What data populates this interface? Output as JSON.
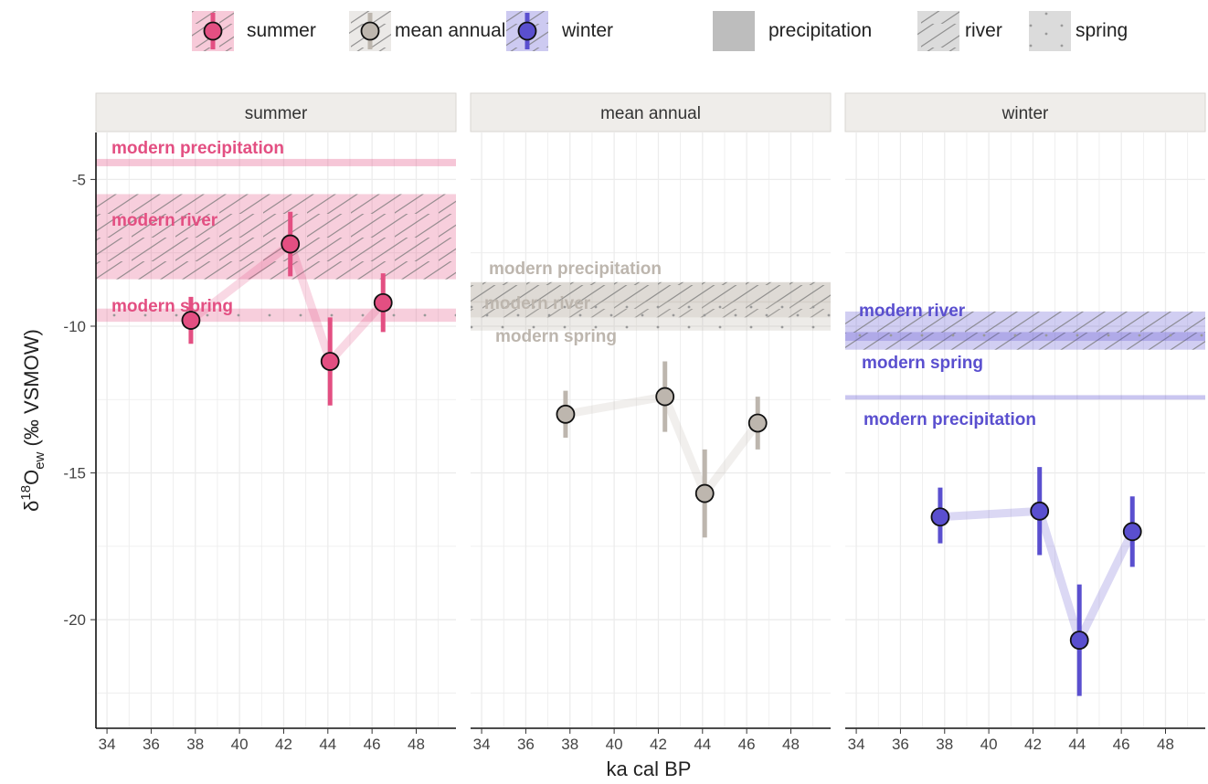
{
  "legend": {
    "season_items": [
      {
        "key": "summer",
        "label": "summer",
        "color": "#e34f82"
      },
      {
        "key": "annual",
        "label": "mean annual",
        "color": "#bdb6ae"
      },
      {
        "key": "winter",
        "label": "winter",
        "color": "#5a4fcf"
      }
    ],
    "source_items": [
      {
        "key": "precipitation",
        "label": "precipitation",
        "fill": "solid"
      },
      {
        "key": "river",
        "label": "river",
        "fill": "hatch"
      },
      {
        "key": "spring",
        "label": "spring",
        "fill": "dots"
      }
    ]
  },
  "chart_data": {
    "type": "scatter",
    "xlabel": "ka cal BP",
    "ylabel": "δ18Oew (‰ VSMOW)",
    "xlim": [
      33.5,
      49.8
    ],
    "ylim": [
      -23.7,
      -3.4
    ],
    "x_ticks": [
      "34",
      "36",
      "38",
      "40",
      "42",
      "44",
      "46",
      "48"
    ],
    "y_ticks": [
      "-5",
      "-10",
      "-15",
      "-20"
    ],
    "panels": [
      {
        "strip": "summer",
        "color": "#e34f82",
        "points": [
          {
            "x": 37.8,
            "y": -9.8,
            "lo": -10.6,
            "hi": -9.0
          },
          {
            "x": 42.3,
            "y": -7.2,
            "lo": -8.3,
            "hi": -6.1
          },
          {
            "x": 44.1,
            "y": -11.2,
            "lo": -12.7,
            "hi": -9.7
          },
          {
            "x": 46.5,
            "y": -9.2,
            "lo": -10.2,
            "hi": -8.2
          }
        ],
        "bands": [
          {
            "source": "precipitation",
            "label": "modern precipitation",
            "lo": -4.55,
            "hi": -4.3
          },
          {
            "source": "river",
            "label": "modern river",
            "lo": -8.4,
            "hi": -5.5
          },
          {
            "source": "spring",
            "label": "modern spring",
            "lo": -9.85,
            "hi": -9.4
          }
        ]
      },
      {
        "strip": "mean annual",
        "color": "#bdb6ae",
        "points": [
          {
            "x": 37.8,
            "y": -13.0,
            "lo": -13.8,
            "hi": -12.2
          },
          {
            "x": 42.3,
            "y": -12.4,
            "lo": -13.6,
            "hi": -11.2
          },
          {
            "x": 44.1,
            "y": -15.7,
            "lo": -17.2,
            "hi": -14.2
          },
          {
            "x": 46.5,
            "y": -13.3,
            "lo": -14.2,
            "hi": -12.4
          }
        ],
        "bands": [
          {
            "source": "precipitation",
            "label": "modern precipitation",
            "lo": -9.2,
            "hi": -8.5
          },
          {
            "source": "river",
            "label": "modern river",
            "lo": -9.7,
            "hi": -8.5
          },
          {
            "source": "spring",
            "label": "modern spring",
            "lo": -10.15,
            "hi": -9.15
          }
        ]
      },
      {
        "strip": "winter",
        "color": "#5a4fcf",
        "points": [
          {
            "x": 37.8,
            "y": -16.5,
            "lo": -17.4,
            "hi": -15.5
          },
          {
            "x": 42.3,
            "y": -16.3,
            "lo": -17.8,
            "hi": -14.8
          },
          {
            "x": 44.1,
            "y": -20.7,
            "lo": -22.6,
            "hi": -18.8
          },
          {
            "x": 46.5,
            "y": -17.0,
            "lo": -18.2,
            "hi": -15.8
          }
        ],
        "bands": [
          {
            "source": "precipitation",
            "label": "modern precipitation",
            "lo": -12.5,
            "hi": -12.35
          },
          {
            "source": "river",
            "label": "modern river",
            "lo": -10.8,
            "hi": -9.5
          },
          {
            "source": "spring",
            "label": "modern spring",
            "lo": -10.5,
            "hi": -10.2
          }
        ]
      }
    ],
    "grid": true,
    "legend_position": "top"
  }
}
